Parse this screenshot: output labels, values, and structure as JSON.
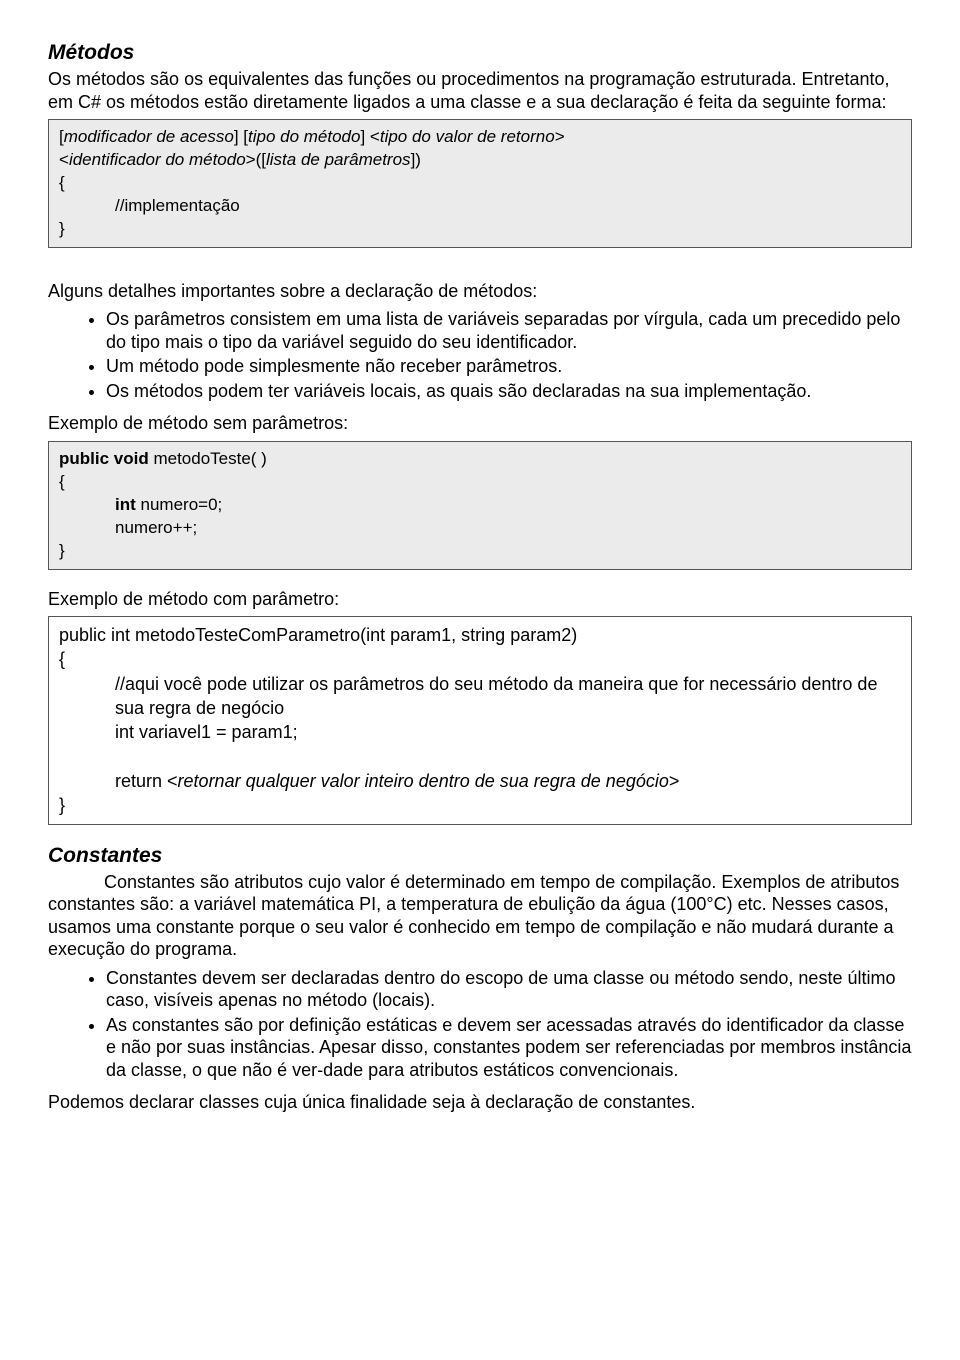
{
  "sec1": {
    "title": "Métodos",
    "p1": "Os métodos são os equivalentes das funções ou procedimentos na programação estruturada. Entretanto, em C# os métodos estão diretamente ligados a uma classe e a sua declaração é feita da seguinte forma:",
    "code1_l1a": "[",
    "code1_l1b": "modificador de acesso",
    "code1_l1c": "] [",
    "code1_l1d": "tipo do método",
    "code1_l1e": "] <",
    "code1_l1f": "tipo do valor de retorno",
    "code1_l1g": ">",
    "code1_l2a": "<",
    "code1_l2b": "identificador do método",
    "code1_l2c": ">([",
    "code1_l2d": "lista de parâmetros",
    "code1_l2e": "])",
    "code1_l3": "{",
    "code1_l4": "//implementação",
    "code1_l5": "}",
    "p2": "Alguns detalhes importantes sobre a declaração de métodos:",
    "b1": "Os parâmetros consistem em uma lista de variáveis separadas por vírgula, cada um precedido pelo do tipo mais o tipo da variável seguido do seu identificador.",
    "b2": "Um método pode simplesmente não receber parâmetros.",
    "b3": "Os métodos podem ter variáveis locais, as quais são declaradas na sua implementação.",
    "p3": "Exemplo de método sem parâmetros:",
    "code2_l1a": "public void",
    "code2_l1b": " metodoTeste( )",
    "code2_l2": "{",
    "code2_l3a": "int",
    "code2_l3b": " numero=0;",
    "code2_l4": "numero++;",
    "code2_l5": "}",
    "p4": "Exemplo de método com parâmetro:",
    "code3_l1": "public int metodoTesteComParametro(int param1, string param2)",
    "code3_l2": "{",
    "code3_l3": "//aqui você pode utilizar os parâmetros do seu método da maneira que for necessário dentro de sua regra de negócio",
    "code3_l4": "int variavel1 = param1;",
    "code3_l5a": "return <",
    "code3_l5b": "retornar qualquer valor inteiro dentro de sua regra de negócio",
    "code3_l5c": ">",
    "code3_l6": "}"
  },
  "sec2": {
    "title": "Constantes",
    "p1": "Constantes são atributos cujo valor é determinado em tempo de compilação. Exemplos de atributos constantes são: a variável matemática PI, a temperatura de ebulição da água (100°C) etc. Nesses casos, usamos uma constante porque o seu valor é conhecido em tempo de compilação e não mudará durante a execução do programa.",
    "b1": "Constantes devem ser declaradas dentro do escopo de uma classe ou método sendo, neste último caso, visíveis apenas no método (locais).",
    "b2": "As constantes são por definição estáticas e devem ser acessadas através do identificador da classe e não por suas instâncias. Apesar disso, constantes podem ser referenciadas por membros instância da classe, o que não é ver-dade para atributos estáticos convencionais.",
    "p2": "Podemos declarar classes cuja única finalidade seja à declaração de constantes."
  }
}
